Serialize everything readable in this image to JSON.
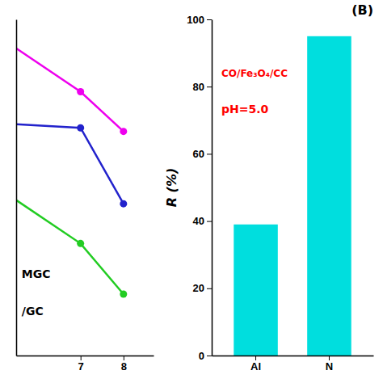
{
  "chart_data": [
    {
      "type": "line",
      "xlim": [
        5.5,
        8.7
      ],
      "ylim": [
        15,
        108
      ],
      "xticks": [
        7,
        8
      ],
      "tick_labels": "x",
      "series": [
        {
          "type": "line",
          "color": "#EE00EE",
          "x": [
            5.5,
            7,
            8
          ],
          "values": [
            100,
            88,
            77
          ]
        },
        {
          "type": "line",
          "color": "#2222CC",
          "x": [
            5.5,
            7,
            8
          ],
          "values": [
            79,
            78,
            57
          ]
        },
        {
          "type": "line",
          "color": "#22CC22",
          "x": [
            5.5,
            7,
            8
          ],
          "values": [
            58,
            46,
            32
          ]
        },
        {
          "type": "scatter",
          "color": "#EE00EE",
          "marker": "circle",
          "x": [
            7,
            8
          ],
          "values": [
            88,
            77
          ]
        },
        {
          "type": "scatter",
          "color": "#2222CC",
          "marker": "circle",
          "x": [
            7,
            8
          ],
          "values": [
            78,
            57
          ]
        },
        {
          "type": "scatter",
          "color": "#22CC22",
          "marker": "circle",
          "x": [
            7,
            8
          ],
          "values": [
            46,
            32
          ]
        }
      ],
      "annotations": [
        {
          "text": "MGC"
        },
        {
          "text": "/GC"
        }
      ]
    },
    {
      "type": "bar",
      "title": "(B)",
      "categories": [
        "Al",
        "N"
      ],
      "values": [
        39,
        95
      ],
      "color": "#00DEDE",
      "ylabel": "R (%)",
      "ylim": [
        0,
        100
      ],
      "yticks": [
        0,
        20,
        40,
        60,
        80,
        100
      ],
      "annotations": [
        {
          "text": "CO/Fe₃O₄/CC",
          "color": "red"
        },
        {
          "text": "pH=5.0",
          "color": "red"
        }
      ]
    }
  ]
}
